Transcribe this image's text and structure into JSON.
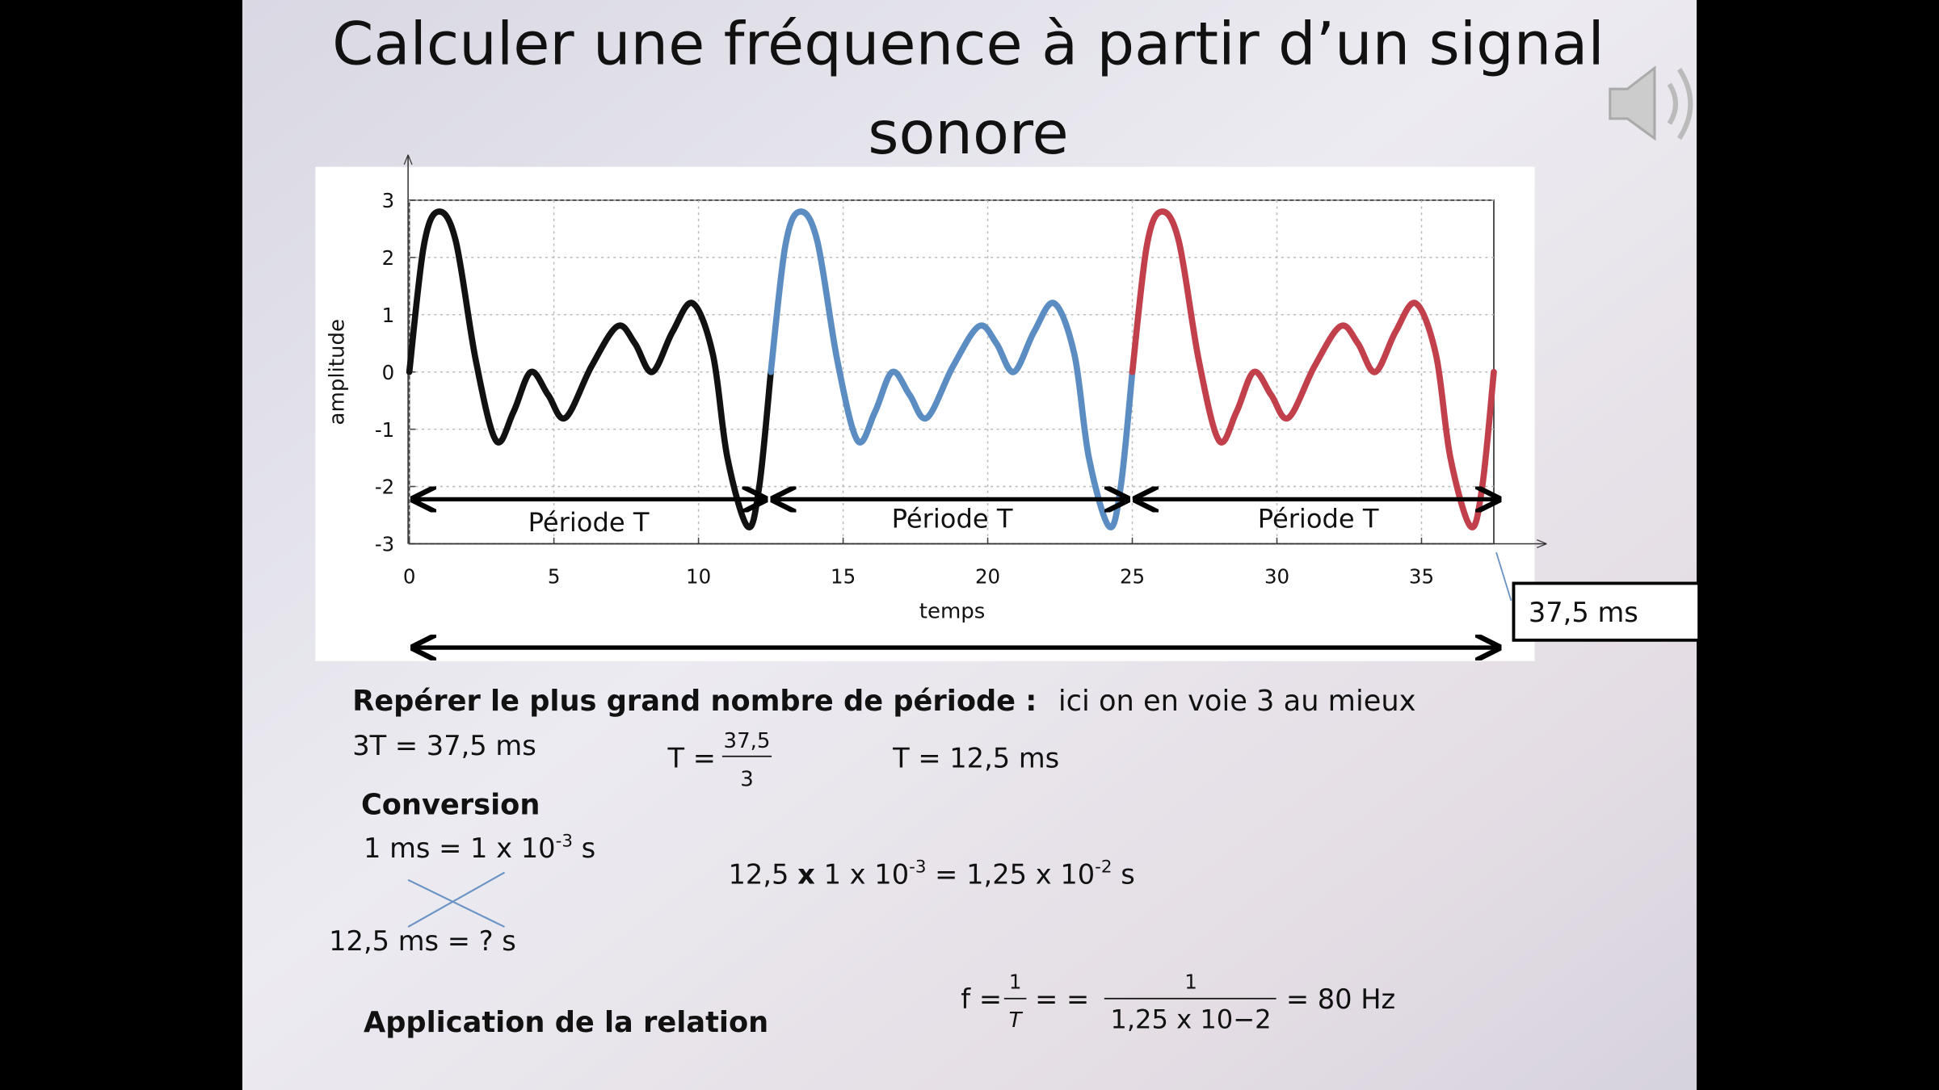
{
  "title": [
    "Calculer une fréquence à partir d’un signal",
    "sonore"
  ],
  "chart_data": {
    "type": "line",
    "x_label": "temps",
    "y_label": "amplitude",
    "xlim": [
      0,
      37.5
    ],
    "ylim": [
      -3,
      3
    ],
    "xticks": [
      0,
      5,
      10,
      15,
      20,
      25,
      30,
      35
    ],
    "yticks": [
      -3,
      -2,
      -1,
      0,
      1,
      2,
      3
    ],
    "grid": true,
    "series": [
      {
        "color": "#111111",
        "x": [
          0,
          0.5,
          1,
          1.6,
          2.3,
          3,
          3.6,
          4.2,
          4.8,
          5.4,
          6.3,
          7.2,
          7.8,
          8.4,
          9.1,
          9.8,
          10.5,
          11,
          11.7,
          12.1,
          12.5
        ],
        "values": [
          0,
          2.2,
          2.8,
          2.3,
          0.2,
          -1.2,
          -0.7,
          0,
          -0.4,
          -0.8,
          0.1,
          0.8,
          0.5,
          0,
          0.7,
          1.2,
          0.3,
          -1.5,
          -2.7,
          -2,
          0
        ]
      },
      {
        "color": "#5b8cc2",
        "x": [
          12.5,
          13,
          13.5,
          14.1,
          14.8,
          15.5,
          16.1,
          16.7,
          17.3,
          17.9,
          18.8,
          19.7,
          20.3,
          20.9,
          21.6,
          22.3,
          23,
          23.5,
          24.2,
          24.6,
          25
        ],
        "values": [
          0,
          2.2,
          2.8,
          2.3,
          0.2,
          -1.2,
          -0.7,
          0,
          -0.4,
          -0.8,
          0.1,
          0.8,
          0.5,
          0,
          0.7,
          1.2,
          0.3,
          -1.5,
          -2.7,
          -2,
          0
        ]
      },
      {
        "color": "#c2404c",
        "x": [
          25,
          25.5,
          26,
          26.6,
          27.3,
          28,
          28.6,
          29.2,
          29.8,
          30.4,
          31.3,
          32.2,
          32.8,
          33.4,
          34.1,
          34.8,
          35.5,
          36,
          36.7,
          37.1,
          37.5
        ],
        "values": [
          0,
          2.2,
          2.8,
          2.3,
          0.2,
          -1.2,
          -0.7,
          0,
          -0.4,
          -0.8,
          0.1,
          0.8,
          0.5,
          0,
          0.7,
          1.2,
          0.3,
          -1.5,
          -2.7,
          -2,
          0
        ]
      }
    ],
    "period_labels": [
      "Période T",
      "Période T",
      "Période T"
    ],
    "total_label": "37,5 ms"
  },
  "step1": {
    "bold": "Repérer le plus grand nombre de période :",
    "rest": "ici on en voie 3 au mieux"
  },
  "eq_3t": "3T = 37,5 ms",
  "eq_t": {
    "lhs": "T =",
    "num": "37,5",
    "den": "3"
  },
  "eq_t_result": "T = 12,5 ms",
  "conversion": {
    "heading": "Conversion",
    "line1": [
      "1 ms  = 1 x 10",
      "-3",
      " s"
    ],
    "line2": "12,5 ms =   ?  s",
    "calc": [
      "12,5 ",
      "x",
      " 1 x 10",
      "-3",
      " = 1,25 x 10",
      "-2",
      " s"
    ]
  },
  "application": "Application de la relation",
  "formula": {
    "lhs": "f =",
    "num1": "1",
    "den1": "T",
    "eq": "= =",
    "num2": "1",
    "den2": "1,25 x 10−2",
    "result": "= 80 Hz"
  }
}
